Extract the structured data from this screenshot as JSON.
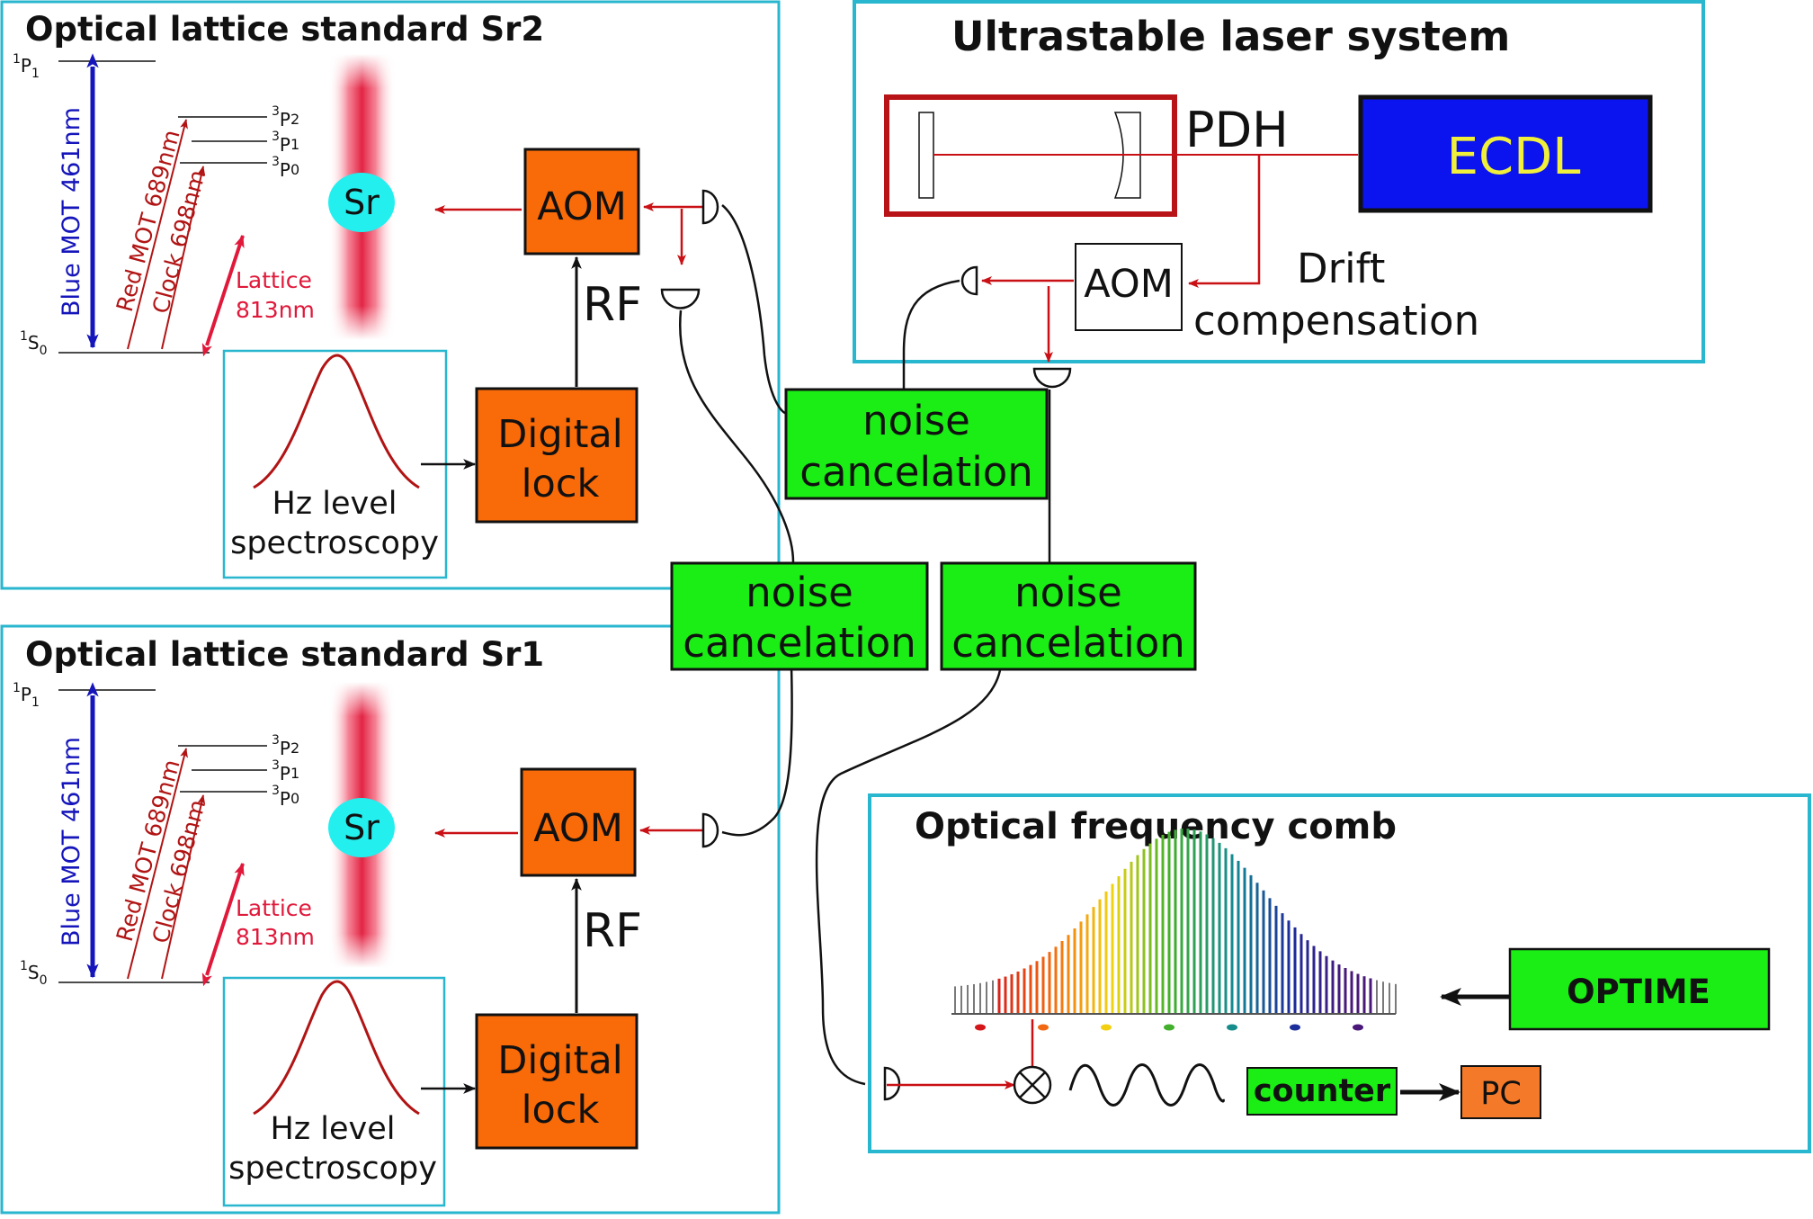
{
  "colors": {
    "frame": "#29b6cf",
    "orange": "#f96a08",
    "green": "#1aee15",
    "blue_box": "#0b14ee",
    "ecdl_text": "#f0ef3a",
    "red_line": "#c91015",
    "dark_red": "#b11414",
    "blue_arrow": "#1515bb",
    "lattice_pink": "#e0193b",
    "cyan_atom": "#23efef",
    "cavity_red": "#b81418"
  },
  "sr2": {
    "title": "Optical lattice standard Sr2",
    "lvl_1p1": {
      "sup": "1",
      "base": "P",
      "sub": "1"
    },
    "lvl_1s0": {
      "sup": "1",
      "base": "S",
      "sub": "0"
    },
    "lvl_3p2": {
      "sup": "3",
      "base": "P",
      "sub": "2"
    },
    "lvl_3p1": {
      "sup": "3",
      "base": "P",
      "sub": "1"
    },
    "lvl_3p0": {
      "sup": "3",
      "base": "P",
      "sub": "0"
    },
    "blue_mot": "Blue MOT 461nm",
    "red_mot": "Red MOT 689nm",
    "clock": "Clock 698nm",
    "lattice_line1": "Lattice",
    "lattice_line2": "813nm",
    "atom": "Sr",
    "aom": "AOM",
    "rf": "RF",
    "lock_line1": "Digital",
    "lock_line2": "lock",
    "spec_line1": "Hz level",
    "spec_line2": "spectroscopy"
  },
  "sr1": {
    "title": "Optical lattice standard Sr1",
    "lvl_1p1": {
      "sup": "1",
      "base": "P",
      "sub": "1"
    },
    "lvl_1s0": {
      "sup": "1",
      "base": "S",
      "sub": "0"
    },
    "lvl_3p2": {
      "sup": "3",
      "base": "P",
      "sub": "2"
    },
    "lvl_3p1": {
      "sup": "3",
      "base": "P",
      "sub": "1"
    },
    "lvl_3p0": {
      "sup": "3",
      "base": "P",
      "sub": "0"
    },
    "blue_mot": "Blue MOT 461nm",
    "red_mot": "Red MOT 689nm",
    "clock": "Clock 698nm",
    "lattice_line1": "Lattice",
    "lattice_line2": "813nm",
    "atom": "Sr",
    "aom": "AOM",
    "rf": "RF",
    "lock_line1": "Digital",
    "lock_line2": "lock",
    "spec_line1": "Hz level",
    "spec_line2": "spectroscopy"
  },
  "laser": {
    "title": "Ultrastable laser system",
    "pdh": "PDH",
    "ecdl": "ECDL",
    "aom": "AOM",
    "drift_line1": "Drift",
    "drift_line2": "compensation"
  },
  "noise": {
    "line1": "noise",
    "line2": "cancelation"
  },
  "comb": {
    "title": "Optical frequency comb",
    "optime": "OPTIME",
    "counter": "counter",
    "pc": "PC"
  }
}
